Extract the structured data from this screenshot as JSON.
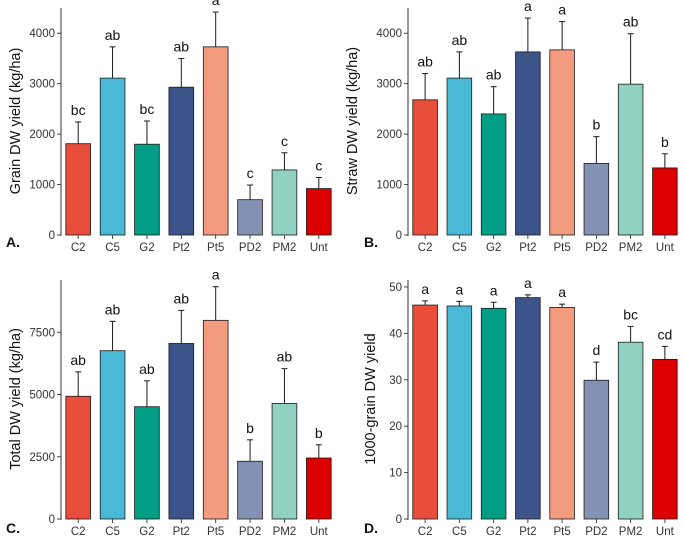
{
  "chart_data": [
    {
      "type": "bar",
      "panel": "A.",
      "ylabel": "Grain DW yield (kg/ha)",
      "categories": [
        "C2",
        "C5",
        "G2",
        "Pt2",
        "Pt5",
        "PD2",
        "PM2",
        "Unt"
      ],
      "values": [
        1810,
        3110,
        1800,
        2930,
        3730,
        700,
        1290,
        920
      ],
      "errors": [
        430,
        620,
        460,
        570,
        690,
        290,
        340,
        220
      ],
      "significance": [
        "bc",
        "ab",
        "bc",
        "ab",
        "a",
        "c",
        "c",
        "c"
      ],
      "ylim": [
        0,
        4500
      ],
      "yticks": [
        0,
        1000,
        2000,
        3000,
        4000
      ]
    },
    {
      "type": "bar",
      "panel": "B.",
      "ylabel": "Straw DW yield (kg/ha)",
      "categories": [
        "C2",
        "C5",
        "G2",
        "Pt2",
        "Pt5",
        "PD2",
        "PM2",
        "Unt"
      ],
      "values": [
        2680,
        3110,
        2400,
        3630,
        3670,
        1420,
        2990,
        1330
      ],
      "errors": [
        520,
        520,
        540,
        670,
        560,
        530,
        1000,
        280
      ],
      "significance": [
        "ab",
        "ab",
        "ab",
        "a",
        "a",
        "b",
        "ab",
        "b"
      ],
      "ylim": [
        0,
        4500
      ],
      "yticks": [
        0,
        1000,
        2000,
        3000,
        4000
      ]
    },
    {
      "type": "bar",
      "panel": "C.",
      "ylabel": "Total DW yield (kg/ha)",
      "categories": [
        "C2",
        "C5",
        "G2",
        "Pt2",
        "Pt5",
        "PD2",
        "PM2",
        "Unt"
      ],
      "values": [
        4930,
        6760,
        4510,
        7050,
        7980,
        2320,
        4640,
        2450
      ],
      "errors": [
        980,
        1180,
        1040,
        1330,
        1350,
        860,
        1400,
        530
      ],
      "significance": [
        "ab",
        "ab",
        "ab",
        "ab",
        "a",
        "b",
        "ab",
        "b"
      ],
      "ylim": [
        0,
        9600
      ],
      "yticks": [
        0,
        2500,
        5000,
        7500
      ]
    },
    {
      "type": "bar",
      "panel": "D.",
      "ylabel": "1000-grain DW yield",
      "categories": [
        "C2",
        "C5",
        "G2",
        "Pt2",
        "Pt5",
        "PD2",
        "PM2",
        "Unt"
      ],
      "values": [
        46.1,
        45.9,
        45.4,
        47.7,
        45.6,
        29.9,
        38.1,
        34.4
      ],
      "errors": [
        0.9,
        1.0,
        1.3,
        0.6,
        0.7,
        3.9,
        3.4,
        2.8
      ],
      "significance": [
        "a",
        "a",
        "a",
        "a",
        "a",
        "d",
        "bc",
        "cd"
      ],
      "ylim": [
        0,
        51.5
      ],
      "yticks": [
        0,
        10,
        20,
        30,
        40,
        50
      ]
    }
  ],
  "colors": [
    "#e84e3b",
    "#4ab9d6",
    "#019e85",
    "#3c5489",
    "#f39b7f",
    "#8491b4",
    "#91d1c2",
    "#dc0000"
  ]
}
